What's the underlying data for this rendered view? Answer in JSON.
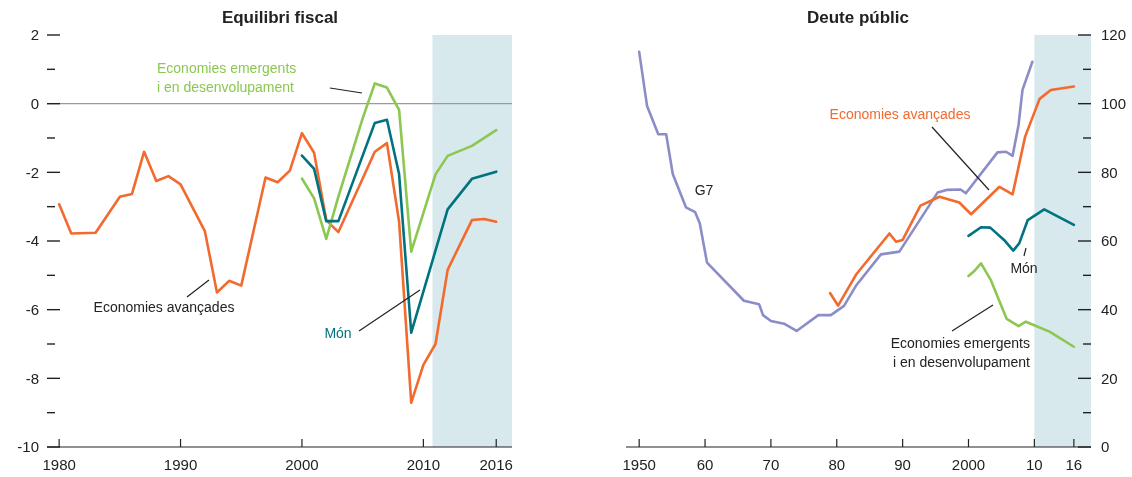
{
  "chart_data": [
    {
      "type": "line",
      "title": "Equilibri fiscal",
      "xlim": [
        1979,
        2017.3
      ],
      "ylim": [
        -10,
        2
      ],
      "xticks": [
        1980,
        1990,
        2000,
        2010,
        2016
      ],
      "yticks": [
        2,
        {
          "value": 1,
          "label": null
        },
        0,
        {
          "value": -1,
          "label": null
        },
        -2,
        {
          "value": -3,
          "label": null
        },
        -4,
        {
          "value": -5,
          "label": null
        },
        -6,
        {
          "value": -7,
          "label": null
        },
        -8,
        {
          "value": -9,
          "label": null
        },
        -10
      ],
      "grid": false,
      "ref_lines": [
        {
          "axis": "y",
          "value": 0,
          "color": "#9a9a9a"
        }
      ],
      "bands": [
        {
          "axis": "x",
          "from": 2010.75,
          "to": 2017.3,
          "color": "#d8e9ee"
        }
      ],
      "series": [
        {
          "name": "Economies avançades",
          "color": "#f26a2e",
          "x": [
            1980,
            1981,
            1983,
            1985,
            1986,
            1987,
            1988,
            1989,
            1990,
            1992,
            1993,
            1994,
            1995,
            1997,
            1998,
            1999,
            2000,
            2001,
            2002,
            2003,
            2006,
            2007,
            2008,
            2009,
            2010,
            2011,
            2012,
            2014,
            2015,
            2016
          ],
          "values": [
            -2.93,
            -3.78,
            -3.76,
            -2.71,
            -2.63,
            -1.4,
            -2.25,
            -2.11,
            -2.35,
            -3.71,
            -5.5,
            -5.16,
            -5.3,
            -2.15,
            -2.29,
            -1.95,
            -0.86,
            -1.43,
            -3.39,
            -3.74,
            -1.4,
            -1.15,
            -3.44,
            -8.71,
            -7.61,
            -7.0,
            -4.84,
            -3.39,
            -3.36,
            -3.44
          ]
        },
        {
          "name": "Economies emergents i en desenvolupament",
          "color": "#8cc751",
          "x": [
            2000,
            2001,
            2002,
            2003,
            2005,
            2006,
            2007,
            2008,
            2009,
            2011,
            2012,
            2014,
            2016
          ],
          "values": [
            -2.18,
            -2.76,
            -3.94,
            -2.71,
            -0.43,
            0.59,
            0.47,
            -0.18,
            -4.31,
            -2.06,
            -1.52,
            -1.23,
            -0.77
          ]
        },
        {
          "name": "Món",
          "color": "#00737f",
          "x": [
            2000,
            2001,
            2002,
            2003,
            2006,
            2007,
            2008,
            2009,
            2012,
            2014,
            2016
          ],
          "values": [
            -1.51,
            -1.9,
            -3.42,
            -3.42,
            -0.56,
            -0.47,
            -2.05,
            -6.67,
            -3.08,
            -2.19,
            -1.98
          ]
        }
      ]
    },
    {
      "type": "line",
      "title": "Deute públic",
      "xlim": [
        1948,
        2018.6
      ],
      "y2lim": [
        0,
        120
      ],
      "xticks": [
        1950,
        {
          "value": 1960,
          "label": "60"
        },
        {
          "value": 1970,
          "label": "70"
        },
        {
          "value": 1980,
          "label": "80"
        },
        {
          "value": 1990,
          "label": "90"
        },
        2000,
        {
          "value": 2010,
          "label": "10"
        },
        {
          "value": 2016,
          "label": "16"
        }
      ],
      "y2ticks": [
        0,
        {
          "value": 10,
          "label": null
        },
        20,
        {
          "value": 30,
          "label": null
        },
        40,
        {
          "value": 50,
          "label": null
        },
        60,
        {
          "value": 70,
          "label": null
        },
        80,
        {
          "value": 90,
          "label": null
        },
        100,
        {
          "value": 110,
          "label": null
        },
        120
      ],
      "grid": false,
      "bands": [
        {
          "axis": "x",
          "from": 2010,
          "to": 2018.6,
          "color": "#d8e9ee"
        }
      ],
      "series": [
        {
          "name": "G7",
          "color": "#8b8dc8",
          "axis": "y2",
          "x": [
            1950,
            1951.2,
            1952.9,
            1954.1,
            1955.1,
            1957.1,
            1958.5,
            1959.2,
            1960.3,
            1965.9,
            1968.2,
            1968.8,
            1970,
            1972,
            1973.9,
            1977.2,
            1979.1,
            1981.1,
            1983,
            1986.7,
            1989.5,
            1995.3,
            1996.8,
            1998.8,
            1999.6,
            2004.4,
            2005.7,
            2006.7,
            2007.6,
            2008.2,
            2009.7
          ],
          "values": [
            115.1,
            99.3,
            91.1,
            91.1,
            79.5,
            69.8,
            68.4,
            65.2,
            53.7,
            42.6,
            41.6,
            38.4,
            36.7,
            35.9,
            33.8,
            38.4,
            38.4,
            41.1,
            47.2,
            56.1,
            56.9,
            74.1,
            74.9,
            75.0,
            73.9,
            85.8,
            86.0,
            84.8,
            93.8,
            104.0,
            112.2
          ]
        },
        {
          "name": "Economies avançades",
          "color": "#f26a2e",
          "axis": "y2",
          "x": [
            1979,
            1980.2,
            1983,
            1988,
            1989,
            1990,
            1992.7,
            1995.6,
            1998.6,
            2000.4,
            2004.7,
            2006.7,
            2008.6,
            2010.8,
            2012.5,
            2016
          ],
          "values": [
            44.8,
            41.2,
            50.4,
            62.2,
            59.8,
            60.3,
            70.3,
            72.9,
            71.2,
            67.8,
            75.8,
            73.6,
            90.4,
            101.4,
            104.0,
            105.0
          ]
        },
        {
          "name": "Món",
          "color": "#00737f",
          "axis": "y2",
          "x": [
            2000,
            2001.9,
            2003.3,
            2005.4,
            2006.8,
            2007.7,
            2009,
            2011.5,
            2016
          ],
          "values": [
            61.5,
            64.0,
            63.9,
            60.3,
            57.2,
            59.3,
            66.1,
            69.2,
            64.7
          ]
        },
        {
          "name": "Economies emergents i en desenvolupament",
          "color": "#8cc751",
          "axis": "y2",
          "x": [
            2000,
            2000.8,
            2001.9,
            2003.4,
            2005.8,
            2007.6,
            2008.7,
            2012.3,
            2016
          ],
          "values": [
            49.8,
            51.1,
            53.5,
            48.6,
            37.3,
            35.2,
            36.5,
            33.6,
            29.2
          ]
        }
      ]
    }
  ]
}
